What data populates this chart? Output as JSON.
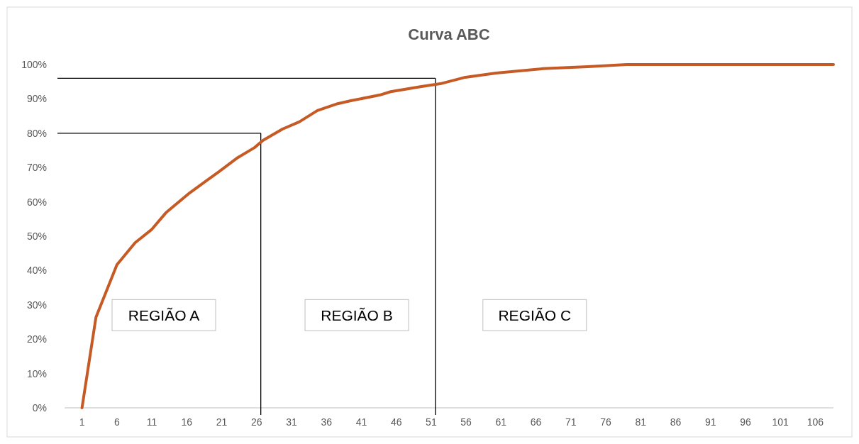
{
  "chart_data": {
    "type": "line",
    "title": "Curva ABC",
    "x": [
      1,
      3,
      6,
      8.6,
      11,
      13,
      16.4,
      20.6,
      23.3,
      25.7,
      26.9,
      29.7,
      32.1,
      34.7,
      37.6,
      39.6,
      43.6,
      45.2,
      49.6,
      52.3,
      55.9,
      60.3,
      67,
      73.4,
      79,
      90,
      100,
      108.6
    ],
    "series": [
      {
        "color": "#c65a24",
        "values": [
          0,
          26.4,
          41.7,
          48.1,
          52,
          56.8,
          62.6,
          68.8,
          72.9,
          75.8,
          77.9,
          81.2,
          83.3,
          86.6,
          88.6,
          89.5,
          91.1,
          92.1,
          93.6,
          94.4,
          96.3,
          97.5,
          98.8,
          99.4,
          100,
          100,
          100,
          100
        ]
      }
    ],
    "xlim": [
      -1.5,
      108.6
    ],
    "xticks": [
      1,
      6,
      11,
      16,
      21,
      26,
      31,
      36,
      41,
      46,
      51,
      56,
      61,
      66,
      71,
      76,
      81,
      86,
      91,
      96,
      101,
      106
    ],
    "ylim": [
      0,
      100
    ],
    "yticks": [
      {
        "value": 0,
        "label": "0%"
      },
      {
        "value": 10,
        "label": "10%"
      },
      {
        "value": 20,
        "label": "20%"
      },
      {
        "value": 30,
        "label": "30%"
      },
      {
        "value": 40,
        "label": "40%"
      },
      {
        "value": 50,
        "label": "50%"
      },
      {
        "value": 60,
        "label": "60%"
      },
      {
        "value": 70,
        "label": "70%"
      },
      {
        "value": 80,
        "label": "80%"
      },
      {
        "value": 90,
        "label": "90%"
      },
      {
        "value": 100,
        "label": "100%"
      }
    ],
    "ref_lines": [
      {
        "axis": "x",
        "value": 26.6,
        "color": "#000000"
      },
      {
        "axis": "x",
        "value": 51.6,
        "color": "#000000"
      },
      {
        "axis": "y",
        "value": 80,
        "color": "#000000"
      },
      {
        "axis": "y",
        "value": 96,
        "color": "#000000"
      }
    ],
    "annotations": [
      "REGIÃO A",
      "REGIÃO B",
      "REGIÃO C"
    ],
    "grid": false,
    "marker": "none",
    "line_style": "solid"
  }
}
